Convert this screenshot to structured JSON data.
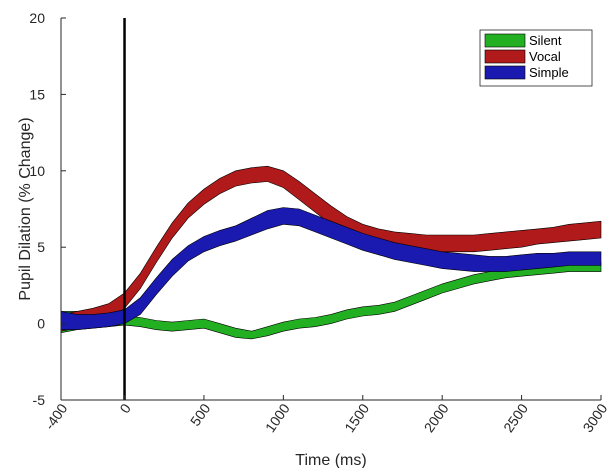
{
  "chart_data": {
    "type": "area",
    "title": "",
    "xlabel": "Time (ms)",
    "ylabel": "Pupil Dilation (% Change)",
    "xlim": [
      -400,
      3000
    ],
    "ylim": [
      -5,
      20
    ],
    "xticks": [
      -400,
      0,
      500,
      1000,
      1500,
      2000,
      2500,
      3000
    ],
    "yticks": [
      -5,
      0,
      5,
      10,
      15,
      20
    ],
    "x_tick_labels": [
      "-400",
      "0",
      "500",
      "1000",
      "1500",
      "2000",
      "2500",
      "3000"
    ],
    "y_tick_labels": [
      "-5",
      "0",
      "5",
      "10",
      "15",
      "20"
    ],
    "x_tick_rotation_deg": 55,
    "grid": false,
    "legend_position": "top-right",
    "vertical_marker": {
      "x": 0,
      "color": "#000000"
    },
    "series": [
      {
        "name": "Silent",
        "color": "#22b022",
        "x": [
          -400,
          -300,
          -200,
          -100,
          0,
          100,
          200,
          300,
          400,
          500,
          600,
          700,
          800,
          900,
          1000,
          1100,
          1200,
          1300,
          1400,
          1500,
          1600,
          1700,
          1800,
          1900,
          2000,
          2100,
          2200,
          2300,
          2400,
          2500,
          2600,
          2700,
          2800,
          2900,
          3000
        ],
        "upper": [
          0.8,
          0.8,
          0.6,
          0.5,
          0.5,
          0.4,
          0.2,
          0.1,
          0.2,
          0.3,
          0.0,
          -0.3,
          -0.5,
          -0.2,
          0.1,
          0.3,
          0.4,
          0.6,
          0.9,
          1.1,
          1.2,
          1.4,
          1.8,
          2.2,
          2.6,
          2.9,
          3.2,
          3.4,
          3.6,
          3.7,
          3.8,
          3.9,
          4.0,
          4.0,
          4.0
        ],
        "lower": [
          -0.6,
          -0.4,
          -0.3,
          -0.2,
          -0.1,
          -0.2,
          -0.4,
          -0.5,
          -0.4,
          -0.3,
          -0.6,
          -0.9,
          -1.0,
          -0.8,
          -0.5,
          -0.3,
          -0.2,
          0.0,
          0.3,
          0.5,
          0.6,
          0.8,
          1.2,
          1.6,
          2.0,
          2.3,
          2.6,
          2.8,
          3.0,
          3.1,
          3.2,
          3.3,
          3.4,
          3.4,
          3.4
        ]
      },
      {
        "name": "Vocal",
        "color": "#b01a1a",
        "x": [
          -400,
          -300,
          -200,
          -100,
          0,
          100,
          200,
          300,
          400,
          500,
          600,
          700,
          800,
          900,
          1000,
          1100,
          1200,
          1300,
          1400,
          1500,
          1600,
          1700,
          1800,
          1900,
          2000,
          2100,
          2200,
          2300,
          2400,
          2500,
          2600,
          2700,
          2800,
          2900,
          3000
        ],
        "upper": [
          0.6,
          0.8,
          1.0,
          1.3,
          2.0,
          3.3,
          5.0,
          6.6,
          7.9,
          8.8,
          9.5,
          10.0,
          10.2,
          10.3,
          10.0,
          9.3,
          8.5,
          7.7,
          7.0,
          6.5,
          6.2,
          6.0,
          5.9,
          5.8,
          5.8,
          5.8,
          5.8,
          5.9,
          6.0,
          6.1,
          6.2,
          6.3,
          6.5,
          6.6,
          6.7
        ],
        "lower": [
          -0.5,
          -0.3,
          -0.1,
          0.3,
          1.0,
          2.3,
          4.0,
          5.6,
          6.9,
          7.8,
          8.5,
          9.0,
          9.2,
          9.3,
          8.9,
          8.1,
          7.3,
          6.5,
          5.8,
          5.3,
          5.0,
          4.8,
          4.8,
          4.7,
          4.7,
          4.7,
          4.7,
          4.8,
          4.9,
          5.0,
          5.2,
          5.3,
          5.4,
          5.5,
          5.6
        ]
      },
      {
        "name": "Simple",
        "color": "#1a1ab0",
        "x": [
          -400,
          -300,
          -200,
          -100,
          0,
          100,
          200,
          300,
          400,
          500,
          600,
          700,
          800,
          900,
          1000,
          1100,
          1200,
          1300,
          1400,
          1500,
          1600,
          1700,
          1800,
          1900,
          2000,
          2100,
          2200,
          2300,
          2400,
          2500,
          2600,
          2700,
          2800,
          2900,
          3000
        ],
        "upper": [
          0.8,
          0.6,
          0.6,
          0.7,
          0.9,
          1.7,
          3.0,
          4.2,
          5.1,
          5.7,
          6.1,
          6.4,
          6.9,
          7.4,
          7.6,
          7.5,
          7.1,
          6.7,
          6.3,
          5.9,
          5.6,
          5.3,
          5.1,
          4.9,
          4.7,
          4.6,
          4.5,
          4.4,
          4.4,
          4.5,
          4.6,
          4.6,
          4.7,
          4.7,
          4.7
        ],
        "lower": [
          -0.4,
          -0.4,
          -0.3,
          -0.2,
          0.0,
          0.6,
          1.9,
          3.1,
          4.1,
          4.7,
          5.1,
          5.4,
          5.8,
          6.2,
          6.5,
          6.4,
          6.0,
          5.6,
          5.2,
          4.8,
          4.5,
          4.2,
          4.0,
          3.8,
          3.6,
          3.5,
          3.4,
          3.4,
          3.4,
          3.5,
          3.6,
          3.7,
          3.8,
          3.8,
          3.8
        ]
      }
    ]
  }
}
